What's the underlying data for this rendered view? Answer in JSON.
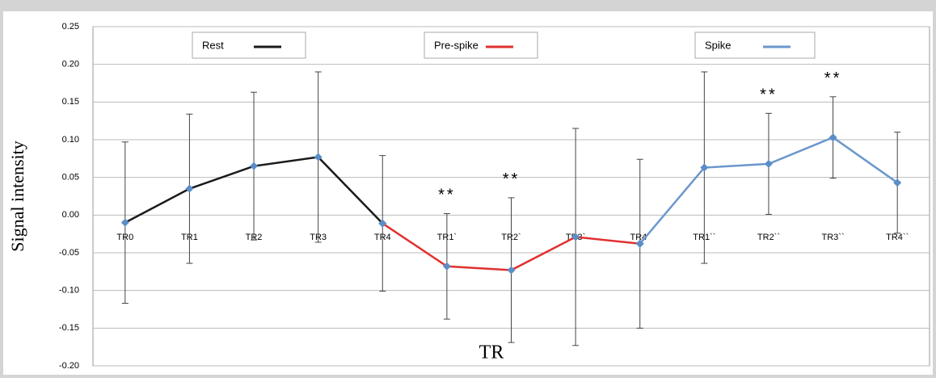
{
  "chart_data": {
    "type": "line",
    "y_label": "Signal intensity",
    "x_label": "TR",
    "categories": [
      "TR0",
      "TR1",
      "TR2",
      "TR3",
      "TR4",
      "TR1`",
      "TR2`",
      "TR3`",
      "TR4`",
      "TR1``",
      "TR2``",
      "TR3``",
      "TR4``"
    ],
    "series": [
      {
        "name": "Rest",
        "color": "#1a1a1a",
        "values": [
          -0.01,
          0.035,
          0.065,
          0.077,
          -0.011,
          null,
          null,
          null,
          null,
          null,
          null,
          null,
          null
        ],
        "errors": [
          0.107,
          0.099,
          0.098,
          0.113,
          0.09,
          null,
          null,
          null,
          null,
          null,
          null,
          null,
          null
        ]
      },
      {
        "name": "Pre-spike",
        "color": "#e03030",
        "values": [
          null,
          null,
          null,
          null,
          -0.011,
          -0.068,
          -0.073,
          -0.029,
          -0.038,
          null,
          null,
          null,
          null
        ],
        "errors": [
          null,
          null,
          null,
          null,
          null,
          0.07,
          0.096,
          0.144,
          0.112,
          null,
          null,
          null,
          null
        ]
      },
      {
        "name": "Spike",
        "color": "#6b97cc",
        "values": [
          null,
          null,
          null,
          null,
          null,
          null,
          null,
          null,
          -0.038,
          0.063,
          0.068,
          0.103,
          0.043
        ],
        "errors": [
          null,
          null,
          null,
          null,
          null,
          null,
          null,
          null,
          null,
          0.127,
          0.067,
          0.054,
          0.067
        ]
      }
    ],
    "marker_color": "#5b8ec8",
    "annotations": [
      {
        "text": "**",
        "at": "TR1`"
      },
      {
        "text": "**",
        "at": "TR2`"
      },
      {
        "text": "**",
        "at": "TR2``"
      },
      {
        "text": "**",
        "at": "TR3``"
      }
    ],
    "ylim": [
      -0.2,
      0.25
    ],
    "yticks": [
      {
        "value": -0.2,
        "label": "-0.20"
      },
      -0.15,
      {
        "value": -0.1,
        "label": "-0.10"
      },
      -0.05,
      {
        "value": 0,
        "label": "0.00"
      },
      0.05,
      {
        "value": 0.1,
        "label": "0.10"
      },
      0.15,
      {
        "value": 0.2,
        "label": "0.20"
      },
      0.25
    ],
    "grid": true
  }
}
